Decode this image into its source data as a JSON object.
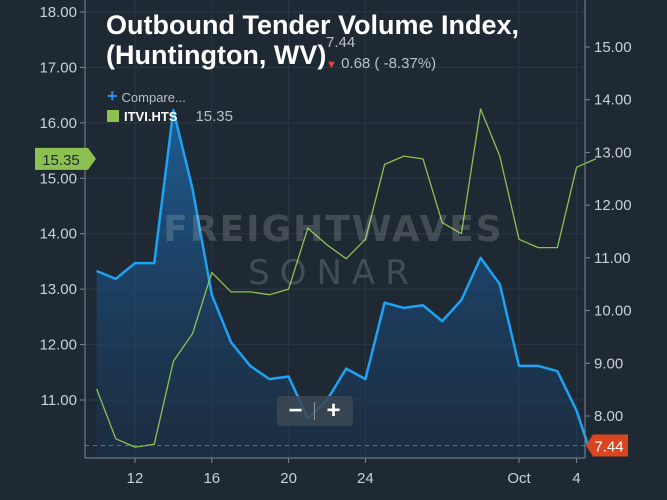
{
  "title_line1": "Outbound Tender Volume Index,",
  "title_line2": "(Huntington, WV)",
  "current_value": "7.44",
  "change_text": "0.68 ( -8.37%)",
  "legend": {
    "compare_label": "Compare...",
    "series_name": "ITVI.HTS",
    "series_value": "15.35"
  },
  "zoom": {
    "minus": "−",
    "plus": "+"
  },
  "watermark": {
    "line1": "FREIGHTWAVES",
    "line2": "SONAR"
  },
  "colors": {
    "background": "#1f2933",
    "blue_series": "#1ea3f4",
    "green_series": "#8cc152",
    "down": "#e8424b",
    "badge_red": "#d9461f"
  },
  "chart_data": {
    "type": "line",
    "x_tick_labels": [
      {
        "label": "12",
        "x": 1
      },
      {
        "label": "16",
        "x": 5
      },
      {
        "label": "20",
        "x": 9
      },
      {
        "label": "24",
        "x": 13
      },
      {
        "label": "Oct",
        "x": 21
      },
      {
        "label": "4",
        "x": 24
      }
    ],
    "left_axis": {
      "ylim": [
        10.1,
        18.2
      ],
      "ticks": [
        "11.00",
        "12.00",
        "13.00",
        "14.00",
        "15.00",
        "16.00",
        "17.00",
        "18.00"
      ]
    },
    "right_axis": {
      "ylim": [
        7.25,
        15.75
      ],
      "ticks": [
        "8.00",
        "9.00",
        "10.00",
        "11.00",
        "12.00",
        "13.00",
        "14.00",
        "15.00"
      ]
    },
    "series": [
      {
        "name": "ITVI.HTS",
        "axis": "left",
        "color": "#8cc152",
        "x": [
          -1,
          0,
          1,
          2,
          3,
          4,
          5,
          6,
          7,
          8,
          9,
          10,
          11,
          12,
          13,
          14,
          15,
          16,
          17,
          18,
          19,
          20,
          21,
          22,
          23,
          24,
          25
        ],
        "values": [
          11.2,
          10.3,
          10.15,
          10.2,
          11.7,
          12.2,
          13.3,
          12.95,
          12.95,
          12.9,
          13.0,
          14.1,
          13.8,
          13.55,
          13.9,
          15.25,
          15.4,
          15.35,
          14.2,
          14.0,
          16.25,
          15.4,
          13.9,
          13.75,
          13.75,
          15.2,
          15.35
        ]
      },
      {
        "axis": "right",
        "color": "#1ea3f4",
        "x": [
          -1,
          0,
          1,
          2,
          3,
          4,
          5,
          6,
          7,
          8,
          9,
          10,
          11,
          12,
          13,
          14,
          15,
          16,
          17,
          18,
          19,
          20,
          21,
          22,
          23,
          24
        ],
        "values": [
          10.75,
          10.6,
          10.9,
          10.9,
          13.8,
          12.3,
          10.3,
          9.4,
          8.95,
          8.7,
          8.75,
          7.95,
          8.3,
          8.9,
          8.7,
          10.15,
          10.05,
          10.1,
          9.8,
          10.2,
          11.0,
          10.5,
          8.95,
          8.95,
          8.85,
          8.1
        ],
        "end_value": 7.44
      }
    ],
    "badges": {
      "left": "15.35",
      "right": "7.44"
    }
  }
}
